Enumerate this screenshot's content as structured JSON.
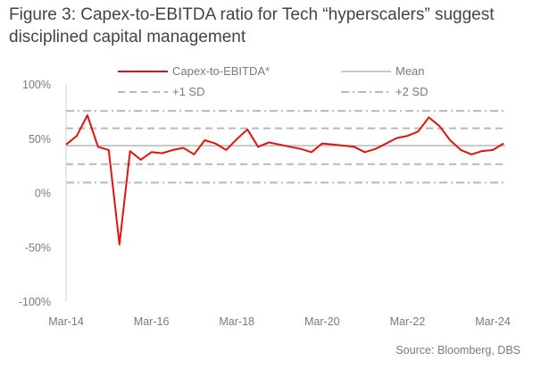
{
  "title": "Figure 3: Capex-to-EBITDA ratio for Tech “hyperscalers” suggest disciplined capital management",
  "source": "Source:  Bloomberg, DBS",
  "colors": {
    "series": "#e3120b",
    "mean": "#b9b9b9",
    "sd": "#b9b9b9"
  },
  "chart_data": {
    "type": "line",
    "title": "Figure 3: Capex-to-EBITDA ratio for Tech “hyperscalers” suggest disciplined capital management",
    "xlabel": "",
    "ylabel": "",
    "ylim": [
      -100,
      100
    ],
    "y_ticks": [
      100,
      50,
      0,
      -50,
      -100
    ],
    "y_tick_labels": [
      "100%",
      "50%",
      "0%",
      "-50%",
      "-100%"
    ],
    "x_range": [
      "2014-03",
      "2024-06"
    ],
    "x_ticks": [
      "2014-03",
      "2016-03",
      "2018-03",
      "2020-03",
      "2022-03",
      "2024-03"
    ],
    "x_tick_labels": [
      "Mar-14",
      "Mar-16",
      "Mar-18",
      "Mar-20",
      "Mar-22",
      "Mar-24"
    ],
    "grid": false,
    "legend_position": "top",
    "series": [
      {
        "name": "Capex-to-EBITDA*",
        "style": "solid-red",
        "points": [
          [
            "2014-03",
            45
          ],
          [
            "2014-06",
            53
          ],
          [
            "2014-09",
            72
          ],
          [
            "2014-12",
            43
          ],
          [
            "2015-03",
            40
          ],
          [
            "2015-06",
            -47
          ],
          [
            "2015-09",
            39
          ],
          [
            "2015-12",
            31
          ],
          [
            "2016-03",
            38
          ],
          [
            "2016-06",
            37
          ],
          [
            "2016-09",
            40
          ],
          [
            "2016-12",
            42
          ],
          [
            "2017-03",
            36
          ],
          [
            "2017-06",
            49
          ],
          [
            "2017-09",
            46
          ],
          [
            "2017-12",
            40
          ],
          [
            "2018-03",
            50
          ],
          [
            "2018-06",
            59
          ],
          [
            "2018-09",
            43
          ],
          [
            "2018-12",
            47
          ],
          [
            "2019-03",
            45
          ],
          [
            "2019-06",
            43
          ],
          [
            "2019-09",
            41
          ],
          [
            "2019-12",
            38
          ],
          [
            "2020-03",
            46
          ],
          [
            "2020-06",
            45
          ],
          [
            "2020-09",
            44
          ],
          [
            "2020-12",
            43
          ],
          [
            "2021-03",
            38
          ],
          [
            "2021-06",
            41
          ],
          [
            "2021-09",
            46
          ],
          [
            "2021-12",
            51
          ],
          [
            "2022-03",
            53
          ],
          [
            "2022-06",
            57
          ],
          [
            "2022-09",
            70
          ],
          [
            "2022-12",
            62
          ],
          [
            "2023-03",
            49
          ],
          [
            "2023-06",
            40
          ],
          [
            "2023-09",
            36
          ],
          [
            "2023-12",
            39
          ],
          [
            "2024-03",
            40
          ],
          [
            "2024-06",
            46
          ]
        ]
      },
      {
        "name": "Mean",
        "style": "solid-grey",
        "value": 44
      },
      {
        "name": "+1 SD",
        "style": "dashed-grey",
        "values": [
          60,
          27
        ]
      },
      {
        "name": "+2 SD",
        "style": "dashdot-grey",
        "values": [
          76,
          10
        ]
      }
    ]
  }
}
